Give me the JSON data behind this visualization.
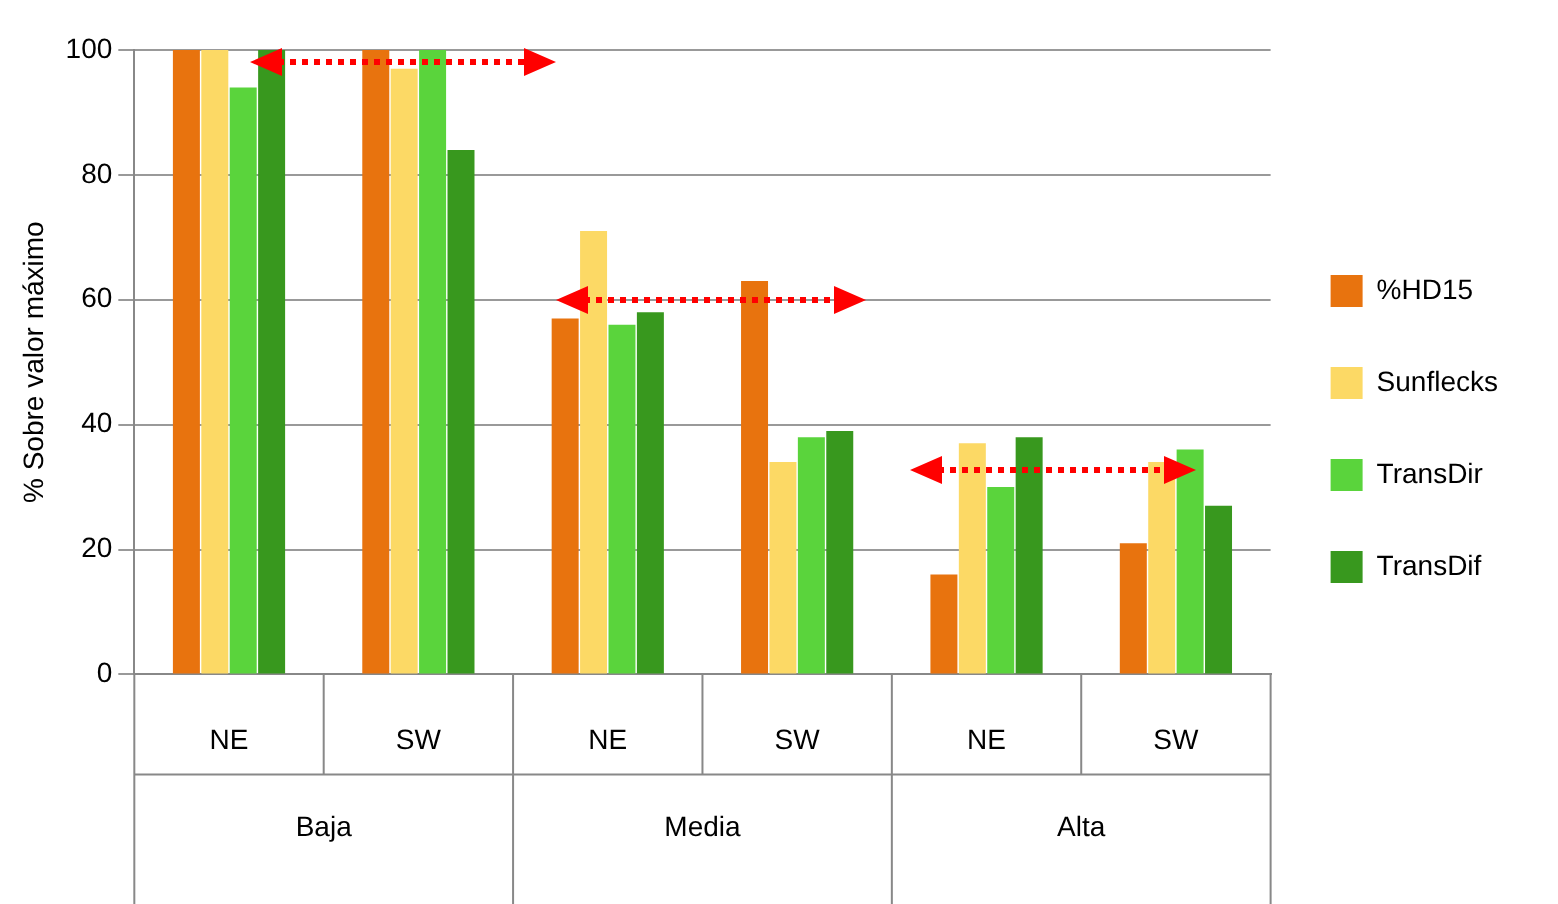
{
  "chart_data": {
    "type": "bar",
    "ylabel": "% Sobre valor máximo",
    "categories": [
      "NE",
      "SW",
      "NE",
      "SW",
      "NE",
      "SW"
    ],
    "series": [
      {
        "name": "%HD15",
        "color": "#e8730e",
        "values": [
          100,
          100,
          57,
          63,
          16,
          21
        ]
      },
      {
        "name": "Sunflecks",
        "color": "#fcd965",
        "values": [
          100,
          97,
          71,
          34,
          37,
          34
        ]
      },
      {
        "name": "TransDir",
        "color": "#5ad43c",
        "values": [
          94,
          100,
          56,
          38,
          30,
          36
        ]
      },
      {
        "name": "TransDif",
        "color": "#38981e",
        "values": [
          100,
          84,
          58,
          39,
          38,
          27
        ]
      }
    ],
    "ylim": [
      0,
      100
    ],
    "yticks": [
      0,
      20,
      40,
      60,
      80,
      100
    ],
    "grid": "y",
    "legend": "right",
    "annotations": [
      "Baja",
      "Media",
      "Alta"
    ]
  }
}
